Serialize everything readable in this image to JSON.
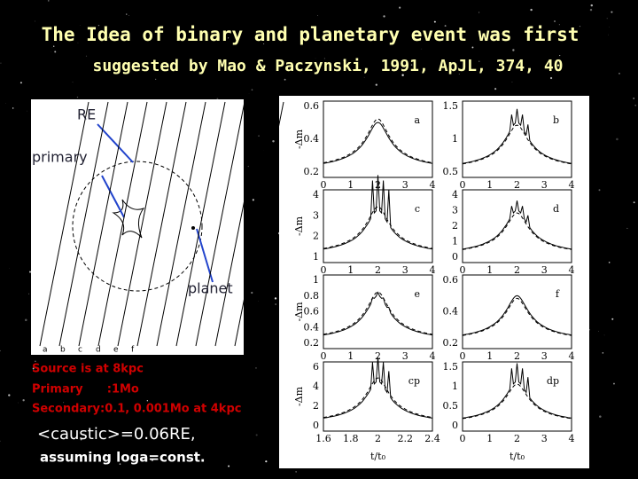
{
  "header": {
    "title_lines": [
      "The Idea of binary and planetary event was first",
      "suggested by Mao & Paczynski, 1991, ApJL, 374, 40"
    ]
  },
  "diagram": {
    "re": "RE",
    "primary": "primary",
    "planet": "planet",
    "track_labels": [
      "a",
      "b",
      "c",
      "d",
      "e",
      "f"
    ]
  },
  "notes": {
    "lines": [
      "Source is at 8kpc",
      "Primary      :1Mo",
      "Secondary:0.1,  0.001Mo at 4kpc"
    ]
  },
  "caption": {
    "caustic": "<caustic>=0.06RE,",
    "assumption": "assuming loga=const."
  },
  "plot": {
    "y_label": "-Δm",
    "x_label": "t/t₀",
    "panels": [
      {
        "label": "a",
        "yticks": [
          "0.6",
          "0.4",
          "0.2"
        ],
        "xticks": [
          "0",
          "1",
          "2",
          "3",
          "4"
        ]
      },
      {
        "label": "b",
        "yticks": [
          "1.5",
          "1",
          "0.5"
        ],
        "xticks": [
          "0",
          "1",
          "2",
          "3",
          "4"
        ]
      },
      {
        "label": "c",
        "yticks": [
          "4",
          "3",
          "2",
          "1"
        ],
        "xticks": [
          "0",
          "1",
          "2",
          "3",
          "4"
        ]
      },
      {
        "label": "d",
        "yticks": [
          "4",
          "3",
          "2",
          "1",
          "0"
        ],
        "xticks": [
          "0",
          "1",
          "2",
          "3",
          "4"
        ]
      },
      {
        "label": "e",
        "yticks": [
          "1",
          "0.8",
          "0.6",
          "0.4",
          "0.2"
        ],
        "xticks": [
          "0",
          "1",
          "2",
          "3",
          "4"
        ]
      },
      {
        "label": "f",
        "yticks": [
          "0.6",
          "0.4",
          "0.2"
        ],
        "xticks": [
          "0",
          "1",
          "2",
          "3",
          "4"
        ]
      },
      {
        "label": "cp",
        "yticks": [
          "6",
          "4",
          "2",
          "0"
        ],
        "xticks": [
          "1.6",
          "1.8",
          "2",
          "2.2",
          "2.4"
        ]
      },
      {
        "label": "dp",
        "yticks": [
          "1.5",
          "1",
          "0.5",
          "0"
        ],
        "xticks": [
          "0",
          "1",
          "2",
          "3",
          "4"
        ]
      }
    ]
  }
}
